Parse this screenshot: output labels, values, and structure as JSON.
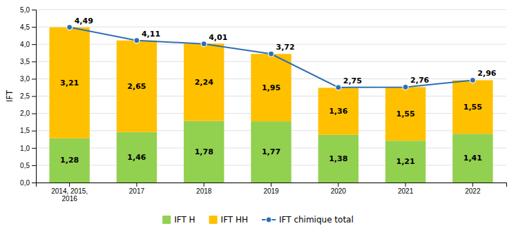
{
  "chart_data": {
    "type": "bar",
    "stacked": true,
    "data_labels": true,
    "grid": true,
    "legend": "bottom",
    "ylabel": "IFT",
    "categories": [
      "2014, 2015,\n2016",
      "2017",
      "2018",
      "2019",
      "2020",
      "2021",
      "2022"
    ],
    "ylim": [
      0,
      5.0
    ],
    "yticks": [
      {
        "value": 0.0,
        "label": "0,0"
      },
      {
        "value": 0.5,
        "label": "0,5"
      },
      {
        "value": 1.0,
        "label": "1,0"
      },
      {
        "value": 1.5,
        "label": "1,5"
      },
      {
        "value": 2.0,
        "label": "2,0"
      },
      {
        "value": 2.5,
        "label": "2,5"
      },
      {
        "value": 3.0,
        "label": "3,0"
      },
      {
        "value": 3.5,
        "label": "3,5"
      },
      {
        "value": 4.0,
        "label": "4,0"
      },
      {
        "value": 4.5,
        "label": "4,5"
      },
      {
        "value": 5.0,
        "label": "5,0"
      }
    ],
    "series": [
      {
        "name": "IFT H",
        "type": "bar",
        "color": "#92d050",
        "values": [
          1.28,
          1.46,
          1.78,
          1.77,
          1.38,
          1.21,
          1.41
        ],
        "value_labels": [
          "1,28",
          "1,46",
          "1,78",
          "1,77",
          "1,38",
          "1,21",
          "1,41"
        ]
      },
      {
        "name": "IFT HH",
        "type": "bar",
        "color": "#ffc000",
        "values": [
          3.21,
          2.65,
          2.24,
          1.95,
          1.36,
          1.55,
          1.55
        ],
        "value_labels": [
          "3,21",
          "2,65",
          "2,24",
          "1,95",
          "1,36",
          "1,55",
          "1,55"
        ]
      },
      {
        "name": "IFT chimique total",
        "type": "line",
        "color": "#2e6eb4",
        "marker": "circle",
        "values": [
          4.49,
          4.11,
          4.01,
          3.72,
          2.75,
          2.76,
          2.96
        ],
        "value_labels": [
          "4,49",
          "4,11",
          "4,01",
          "3,72",
          "2,75",
          "2,76",
          "2,96"
        ]
      }
    ]
  }
}
